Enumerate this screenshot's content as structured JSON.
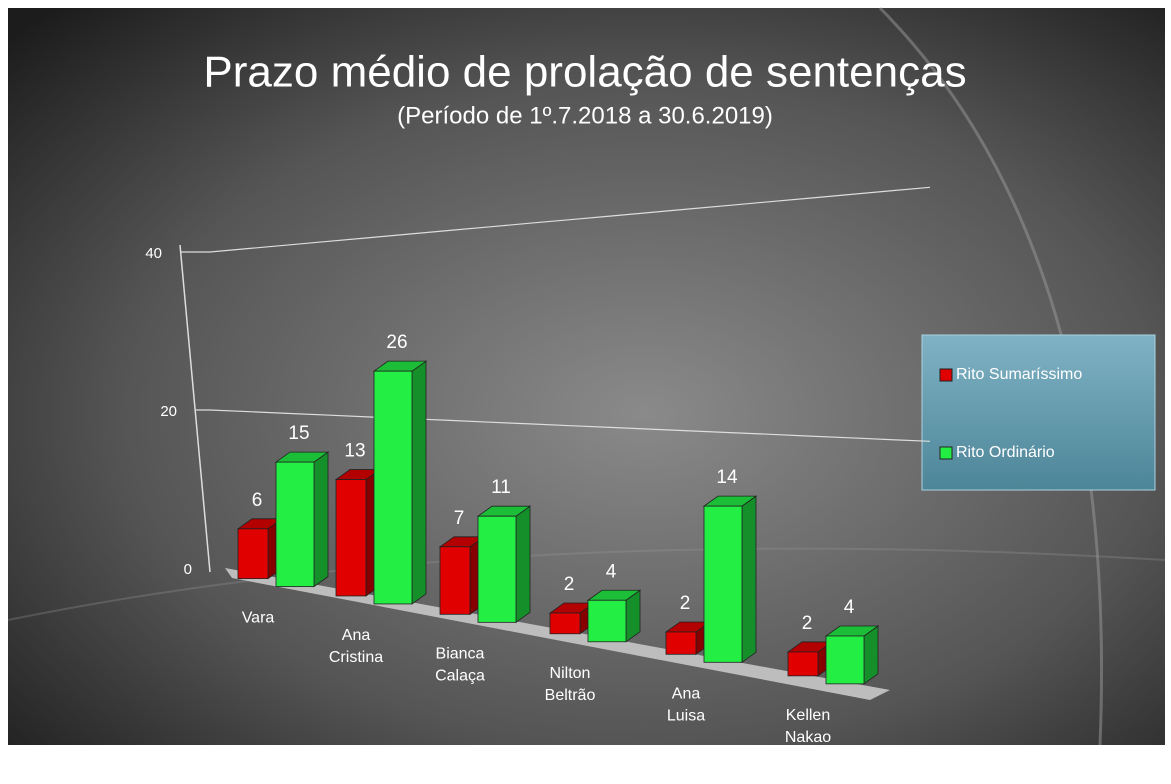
{
  "chart_data": {
    "type": "bar3d",
    "title": "Prazo médio de prolação de sentenças",
    "subtitle": "(Período de 1º.7.2018  a  30.6.2019)",
    "categories": [
      "Vara",
      "Ana Cristina",
      "Bianca Calaça",
      "Nilton Beltrão",
      "Ana Luisa",
      "Kellen Nakao"
    ],
    "series": [
      {
        "name": "Rito Sumaríssimo",
        "color": "#e00000",
        "values": [
          6,
          13,
          7,
          2,
          2,
          2
        ]
      },
      {
        "name": "Rito Ordinário",
        "color": "#22ee44",
        "values": [
          15,
          26,
          11,
          4,
          14,
          4
        ]
      }
    ],
    "ylim": [
      0,
      40
    ],
    "yticks": [
      0,
      20,
      40
    ],
    "grid": true,
    "legend": "right"
  }
}
